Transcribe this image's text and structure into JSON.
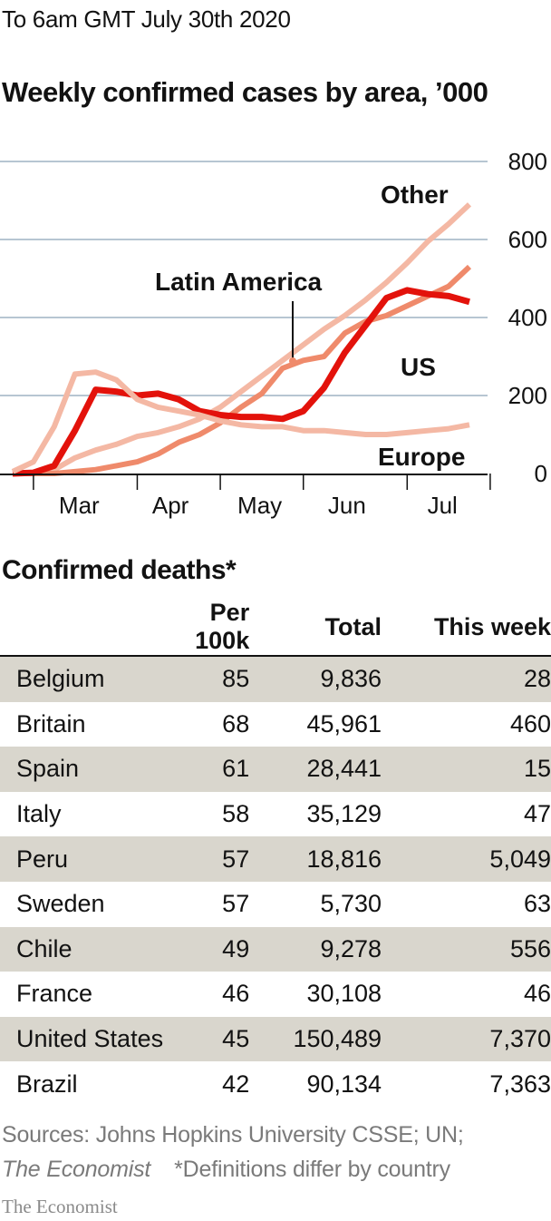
{
  "header": {
    "timestamp": "To 6am GMT July 30th 2020",
    "chart_title": "Weekly confirmed cases by area, ’000"
  },
  "chart_data": {
    "type": "line",
    "title": "Weekly confirmed cases by area, ’000",
    "xlabel": "",
    "ylabel": "",
    "ylim": [
      0,
      800
    ],
    "yticks": [
      0,
      200,
      400,
      600,
      800
    ],
    "xticks": [
      "Mar",
      "Apr",
      "May",
      "Jun",
      "Jul"
    ],
    "x": [
      "2020-02-23",
      "2020-03-01",
      "2020-03-08",
      "2020-03-15",
      "2020-03-22",
      "2020-03-29",
      "2020-04-05",
      "2020-04-12",
      "2020-04-19",
      "2020-04-26",
      "2020-05-03",
      "2020-05-10",
      "2020-05-17",
      "2020-05-24",
      "2020-05-31",
      "2020-06-07",
      "2020-06-14",
      "2020-06-21",
      "2020-06-28",
      "2020-07-05",
      "2020-07-12",
      "2020-07-19",
      "2020-07-26"
    ],
    "grid": true,
    "series": [
      {
        "name": "Other",
        "color": "#f4b8a4",
        "values": [
          0,
          3,
          10,
          40,
          60,
          75,
          95,
          105,
          120,
          140,
          170,
          210,
          250,
          290,
          330,
          370,
          405,
          445,
          490,
          540,
          595,
          640,
          690
        ]
      },
      {
        "name": "Latin America",
        "color": "#ef8a6b",
        "values": [
          0,
          0,
          0,
          5,
          10,
          20,
          30,
          50,
          80,
          100,
          130,
          170,
          205,
          270,
          290,
          300,
          360,
          390,
          405,
          430,
          455,
          480,
          530
        ]
      },
      {
        "name": "US",
        "color": "#e3120b",
        "values": [
          0,
          2,
          20,
          110,
          215,
          210,
          200,
          205,
          190,
          160,
          150,
          145,
          145,
          140,
          160,
          220,
          310,
          380,
          450,
          470,
          460,
          455,
          440
        ]
      },
      {
        "name": "Europe",
        "color": "#f4b8a4",
        "values": [
          5,
          30,
          120,
          255,
          260,
          240,
          190,
          170,
          160,
          150,
          135,
          125,
          120,
          120,
          110,
          110,
          105,
          100,
          100,
          105,
          110,
          115,
          125
        ]
      }
    ],
    "annotations": [
      "Other",
      "Latin America",
      "US",
      "Europe"
    ]
  },
  "table": {
    "title": "Confirmed deaths*",
    "columns": [
      "",
      "Per 100k",
      "Total",
      "This week"
    ],
    "rows": [
      {
        "country": "Belgium",
        "per100k": "85",
        "total": "9,836",
        "week": "28"
      },
      {
        "country": "Britain",
        "per100k": "68",
        "total": "45,961",
        "week": "460"
      },
      {
        "country": "Spain",
        "per100k": "61",
        "total": "28,441",
        "week": "15"
      },
      {
        "country": "Italy",
        "per100k": "58",
        "total": "35,129",
        "week": "47"
      },
      {
        "country": "Peru",
        "per100k": "57",
        "total": "18,816",
        "week": "5,049"
      },
      {
        "country": "Sweden",
        "per100k": "57",
        "total": "5,730",
        "week": "63"
      },
      {
        "country": "Chile",
        "per100k": "49",
        "total": "9,278",
        "week": "556"
      },
      {
        "country": "France",
        "per100k": "46",
        "total": "30,108",
        "week": "46"
      },
      {
        "country": "United States",
        "per100k": "45",
        "total": "150,489",
        "week": "7,370"
      },
      {
        "country": "Brazil",
        "per100k": "42",
        "total": "90,134",
        "week": "7,363"
      }
    ]
  },
  "footer": {
    "sources": "Sources: Johns Hopkins University CSSE; UN;",
    "publication": "The Economist",
    "note": "*Definitions differ by country",
    "brand": "The Economist"
  },
  "colors": {
    "accent": "#e3120b",
    "other": "#f4b8a4",
    "latin_america": "#ef8a6b",
    "gridline": "#b7c6d2",
    "row_shade": "#d9d6cd"
  }
}
